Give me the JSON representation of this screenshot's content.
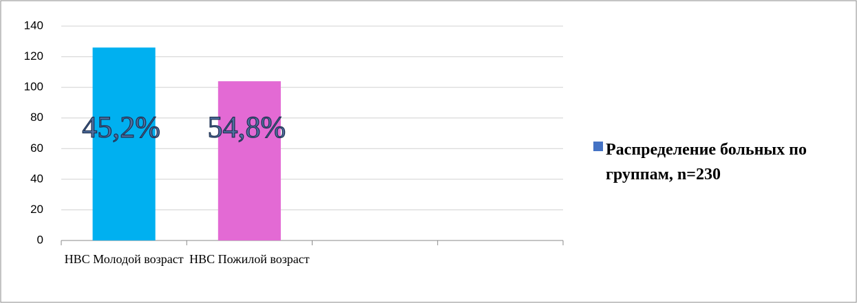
{
  "chart_data": {
    "type": "bar",
    "categories": [
      "НВС Молодой возраст",
      "НВС Пожилой возраст",
      null,
      null
    ],
    "series": [
      {
        "name": "Распределение больных по группам, n=230",
        "color": "#4472c4",
        "values": [
          126,
          104,
          null,
          null
        ]
      }
    ],
    "bar_colors": [
      "#00b0f0",
      "#e36ad4",
      null,
      null
    ],
    "annotations": [
      "45,2%",
      "54,8%"
    ],
    "ylim": [
      0,
      140
    ],
    "yticks": [
      0,
      20,
      40,
      60,
      80,
      100,
      120,
      140
    ],
    "grid": true,
    "legend": "right"
  }
}
